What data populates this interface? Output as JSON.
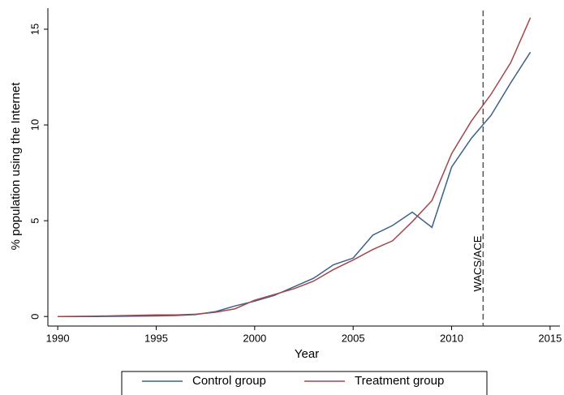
{
  "chart_data": {
    "type": "line",
    "y_label": "% population using the Internet",
    "x_label": "Year",
    "x": [
      1990,
      1991,
      1992,
      1993,
      1994,
      1995,
      1996,
      1997,
      1998,
      1999,
      2000,
      2001,
      2002,
      2003,
      2004,
      2005,
      2006,
      2007,
      2008,
      2009,
      2010,
      2011,
      2012,
      2013,
      2014
    ],
    "series": [
      {
        "name": "Control group",
        "color": "#3b6188",
        "values": [
          0,
          0,
          0,
          0.01,
          0.02,
          0.03,
          0.05,
          0.1,
          0.25,
          0.55,
          0.8,
          1.1,
          1.55,
          2.0,
          2.7,
          3.05,
          4.25,
          4.75,
          5.45,
          4.65,
          7.8,
          9.3,
          10.5,
          12.2,
          13.8
        ]
      },
      {
        "name": "Treatment group",
        "color": "#a2474c",
        "values": [
          0,
          0.01,
          0.02,
          0.04,
          0.06,
          0.08,
          0.08,
          0.12,
          0.22,
          0.4,
          0.85,
          1.15,
          1.45,
          1.85,
          2.45,
          2.95,
          3.5,
          3.95,
          4.95,
          6.05,
          8.5,
          10.2,
          11.6,
          13.25,
          15.6
        ]
      }
    ],
    "vline": {
      "x": 2011.6,
      "label": "WACS/ACE"
    },
    "xlim": [
      1989.5,
      2015.5
    ],
    "xticks": [
      1990,
      1995,
      2000,
      2005,
      2010,
      2015
    ],
    "ylim": [
      -0.5,
      16.1
    ],
    "yticks": [
      0,
      5,
      10,
      15
    ],
    "grid": false,
    "legend": "bottom"
  }
}
